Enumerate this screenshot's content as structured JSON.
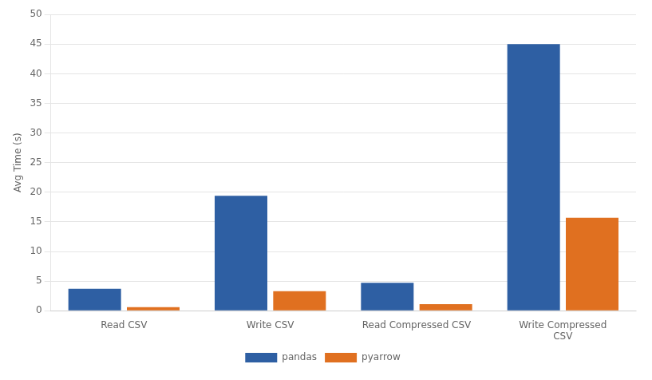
{
  "chart_data": {
    "type": "bar",
    "categories": [
      "Read CSV",
      "Write CSV",
      "Read Compressed CSV",
      "Write Compressed\nCSV"
    ],
    "series": [
      {
        "name": "pandas",
        "color": "#2E5FA3",
        "values": [
          3.7,
          19.4,
          4.7,
          45.0
        ]
      },
      {
        "name": "pyarrow",
        "color": "#E07020",
        "values": [
          0.6,
          3.3,
          1.1,
          15.7
        ]
      }
    ],
    "ylabel": "Avg Time (s)",
    "ylim": [
      0,
      50
    ],
    "yticks": [
      0,
      5,
      10,
      15,
      20,
      25,
      30,
      35,
      40,
      45,
      50
    ],
    "grid": true,
    "legend": "bottom"
  }
}
